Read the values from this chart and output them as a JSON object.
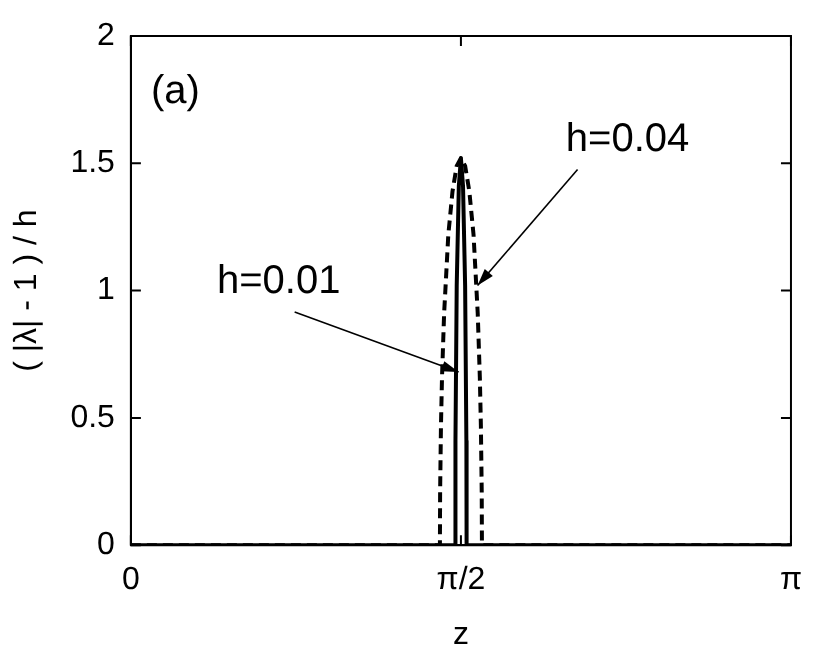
{
  "chart_data": {
    "type": "line",
    "xlabel": "z",
    "ylabel": "( |λ| - 1 ) / h",
    "xlim": [
      0,
      3.1416
    ],
    "ylim": [
      0,
      2
    ],
    "xticks": [
      0,
      {
        "value": 1.5708,
        "label": "π/2"
      },
      {
        "value": 3.1416,
        "label": "π"
      }
    ],
    "yticks": [
      0,
      0.5,
      1,
      1.5,
      2
    ],
    "grid": false,
    "legend": false,
    "marker": "none",
    "series": [
      {
        "color": "#000000",
        "line_style": "dashed",
        "x": [
          0,
          1.4708,
          1.4718,
          1.4758,
          1.4808,
          1.4908,
          1.5108,
          1.5308,
          1.5508,
          1.5708,
          1.5908,
          1.6108,
          1.6308,
          1.6508,
          1.6608,
          1.6658,
          1.6698,
          1.6708,
          3.1416
        ],
        "values": [
          0,
          0,
          0.21,
          0.47,
          0.66,
          0.91,
          1.22,
          1.39,
          1.49,
          1.52,
          1.49,
          1.39,
          1.22,
          0.91,
          0.66,
          0.47,
          0.21,
          0,
          0
        ]
      },
      {
        "color": "#000000",
        "line_style": "solid",
        "x": [
          0,
          1.5438,
          1.5448,
          1.5508,
          1.5608,
          1.5708,
          1.5808,
          1.5908,
          1.5968,
          1.5978,
          3.1416
        ],
        "values": [
          0,
          0,
          0.41,
          1.02,
          1.41,
          1.52,
          1.41,
          1.02,
          0.41,
          0,
          0
        ]
      }
    ],
    "annotations": [
      "(a)",
      {
        "text": "h=0.01",
        "x": 1.56,
        "y": 0.68
      },
      {
        "text": "h=0.04",
        "x": 1.65,
        "y": 1.02
      }
    ]
  }
}
